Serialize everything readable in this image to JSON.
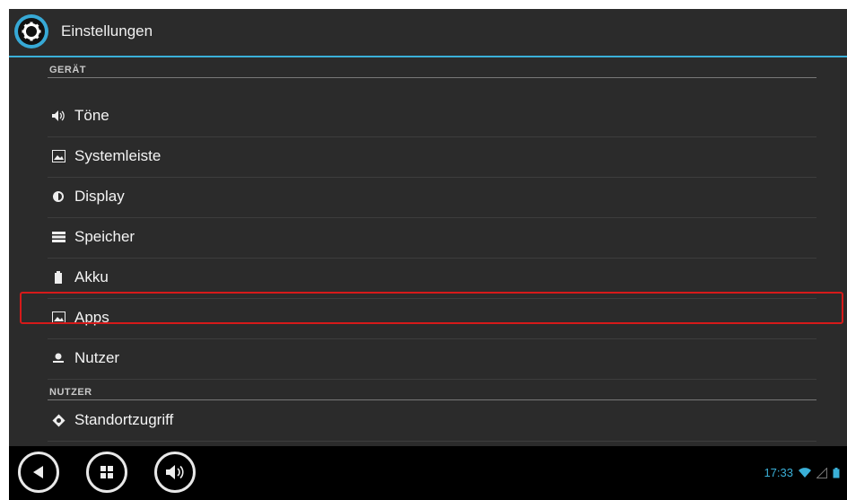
{
  "actionbar": {
    "title": "Einstellungen",
    "icon": "settings-gear-icon"
  },
  "sections": [
    {
      "header": "GERÄT",
      "items": [
        {
          "label": "Töne",
          "icon": "volume-icon"
        },
        {
          "label": "Systemleiste",
          "icon": "image-icon"
        },
        {
          "label": "Display",
          "icon": "brightness-icon"
        },
        {
          "label": "Speicher",
          "icon": "storage-icon"
        },
        {
          "label": "Akku",
          "icon": "battery-icon"
        },
        {
          "label": "Apps",
          "icon": "apps-icon",
          "highlighted": true
        },
        {
          "label": "Nutzer",
          "icon": "user-icon"
        }
      ]
    },
    {
      "header": "NUTZER",
      "items": [
        {
          "label": "Standortzugriff",
          "icon": "location-icon"
        }
      ]
    }
  ],
  "navbar": {
    "buttons": [
      "back-icon",
      "apps-grid-icon",
      "volume-icon"
    ]
  },
  "status": {
    "time": "17:33",
    "icons": [
      "wifi-icon",
      "signal-icon",
      "battery-status-icon"
    ]
  },
  "colors": {
    "accent": "#3ab0d8",
    "highlight": "#d61a1a",
    "background": "#2b2b2b"
  }
}
